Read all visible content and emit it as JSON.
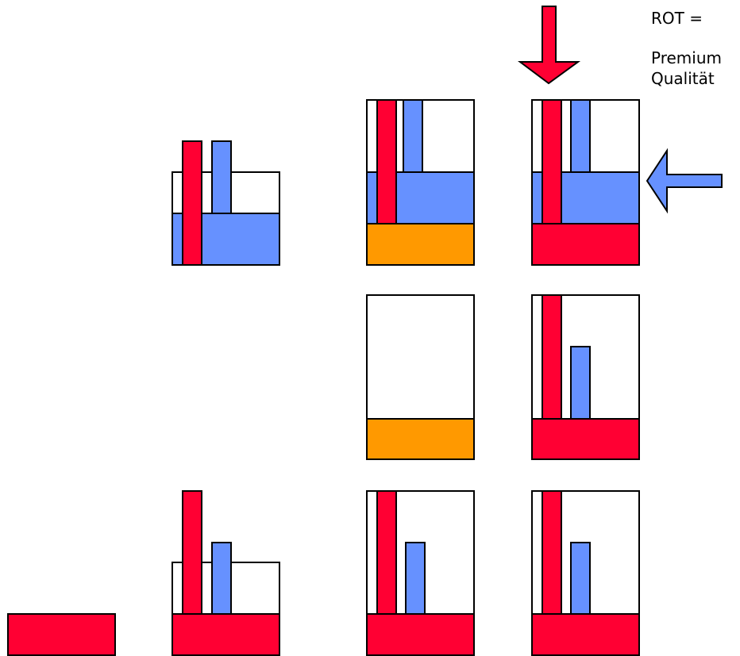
{
  "legend": {
    "line1": "ROT =",
    "line2": "Premium",
    "line3": "Qualität"
  },
  "colors": {
    "red": "#FF0033",
    "blue": "#6691FF",
    "orange": "#FF9900",
    "outline": "#000000",
    "background": "#FFFFFF"
  },
  "icons": {
    "down_arrow": "arrow-down-icon",
    "left_arrow": "arrow-left-icon"
  }
}
